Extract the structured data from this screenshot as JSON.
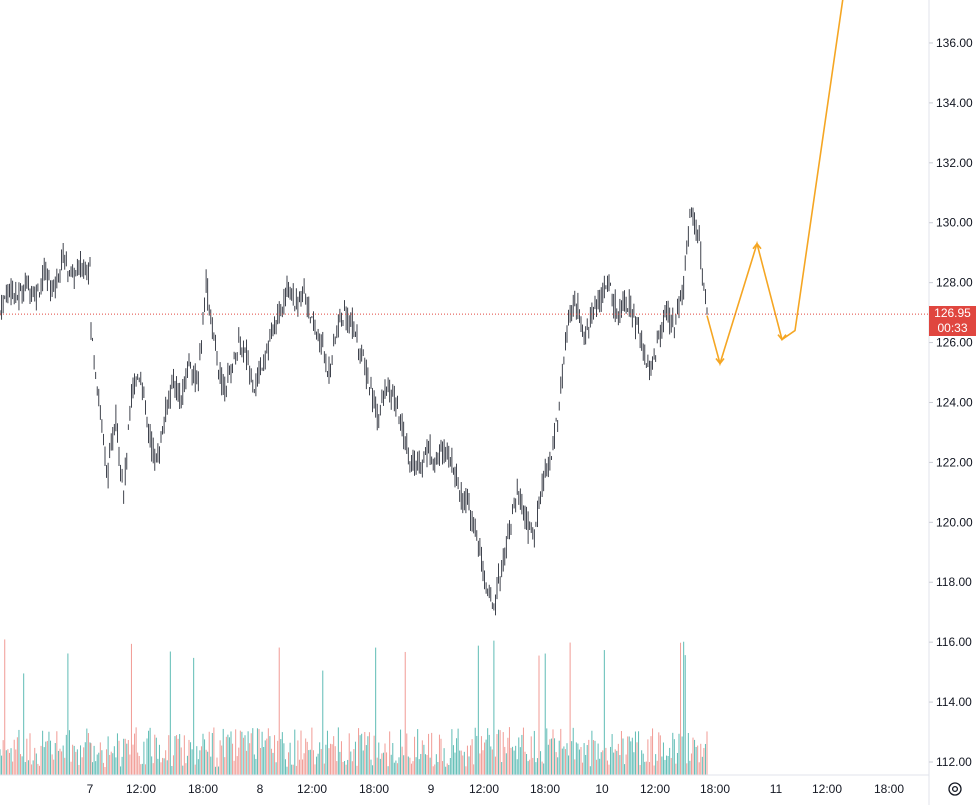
{
  "chart_data": {
    "type": "candlestick",
    "y_axis": {
      "ticks": [
        "112.00",
        "114.00",
        "116.00",
        "118.00",
        "120.00",
        "122.00",
        "124.00",
        "126.00",
        "128.00",
        "130.00",
        "132.00",
        "134.00",
        "136.00"
      ],
      "ylim": [
        111.6,
        137.5
      ],
      "position": "right"
    },
    "x_axis": {
      "ticks": [
        "7",
        "12:00",
        "18:00",
        "8",
        "12:00",
        "18:00",
        "9",
        "12:00",
        "18:00",
        "10",
        "12:00",
        "18:00",
        "11",
        "12:00",
        "18:00"
      ]
    },
    "current_price": {
      "value": 126.95,
      "label": "126.95",
      "countdown": "00:33",
      "color": "#e0463f"
    },
    "price_path": [
      127.0,
      127.9,
      127.5,
      128.0,
      127.6,
      128.3,
      127.8,
      128.9,
      128.2,
      128.5,
      128.6,
      126.5,
      124.0,
      121.5,
      123.5,
      121.0,
      124.5,
      125.0,
      123.0,
      122.0,
      123.5,
      124.8,
      124.0,
      125.5,
      124.5,
      128.0,
      126.0,
      124.5,
      125.0,
      126.0,
      125.5,
      124.5,
      125.5,
      126.2,
      127.0,
      128.0,
      127.2,
      127.8,
      126.5,
      126.0,
      125.0,
      126.5,
      127.0,
      126.5,
      125.5,
      124.5,
      123.5,
      124.5,
      124.0,
      123.0,
      122.0,
      121.8,
      122.5,
      122.0,
      122.5,
      122.0,
      121.0,
      120.5,
      119.5,
      118.0,
      117.2,
      118.5,
      120.0,
      121.0,
      120.0,
      119.5,
      121.5,
      122.0,
      124.0,
      126.5,
      127.5,
      126.0,
      127.0,
      127.5,
      128.0,
      127.0,
      127.5,
      127.0,
      126.0,
      125.0,
      126.0,
      127.0,
      126.5,
      127.5,
      130.5,
      129.5,
      127.0
    ],
    "projection": {
      "color": "#f5a623",
      "points": [
        [
          126.9,
          0
        ],
        [
          125.3,
          1
        ],
        [
          129.3,
          2
        ],
        [
          126.1,
          3
        ],
        [
          126.4,
          4
        ],
        [
          137.5,
          5
        ]
      ]
    },
    "volume_colors": {
      "up": "#5fbcb5",
      "down": "#f19b95"
    }
  },
  "icons": {
    "settings": "settings-gear-icon"
  }
}
